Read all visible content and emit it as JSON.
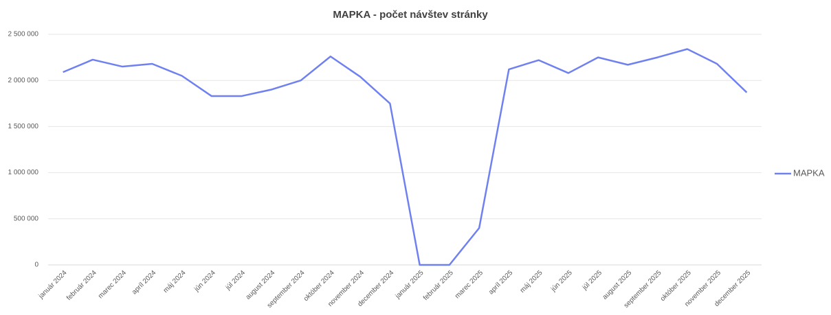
{
  "chart_data": {
    "type": "line",
    "title": "MAPKA - počet návštev stránky",
    "categories": [
      "január 2024",
      "február 2024",
      "marec 2024",
      "apríl 2024",
      "máj 2024",
      "jún 2024",
      "júl 2024",
      "august 2024",
      "september 2024",
      "október 2024",
      "november 2024",
      "december 2024",
      "január 2025",
      "február 2025",
      "marec 2025",
      "apríl 2025",
      "máj 2025",
      "jún 2025",
      "júl 2025",
      "august 2025",
      "september 2025",
      "október 2025",
      "november 2025",
      "december 2025"
    ],
    "series": [
      {
        "name": "MAPKA",
        "color": "#6f80f0",
        "values": [
          2090000,
          2225000,
          2150000,
          2180000,
          2050000,
          1830000,
          1830000,
          1900000,
          2000000,
          2260000,
          2040000,
          1750000,
          0,
          0,
          400000,
          2120000,
          2220000,
          2080000,
          2250000,
          2170000,
          2250000,
          2340000,
          2180000,
          1870000
        ]
      }
    ],
    "ylim": [
      0,
      2500000
    ],
    "yticks": [
      0,
      {
        "value": 500000,
        "label": "500 000"
      },
      {
        "value": 1000000,
        "label": "1 000 000"
      },
      {
        "value": 1500000,
        "label": "1 500 000"
      },
      {
        "value": 2000000,
        "label": "2 000 000"
      },
      {
        "value": 2500000,
        "label": "2 500 000"
      }
    ],
    "grid": true,
    "legend": "right"
  }
}
